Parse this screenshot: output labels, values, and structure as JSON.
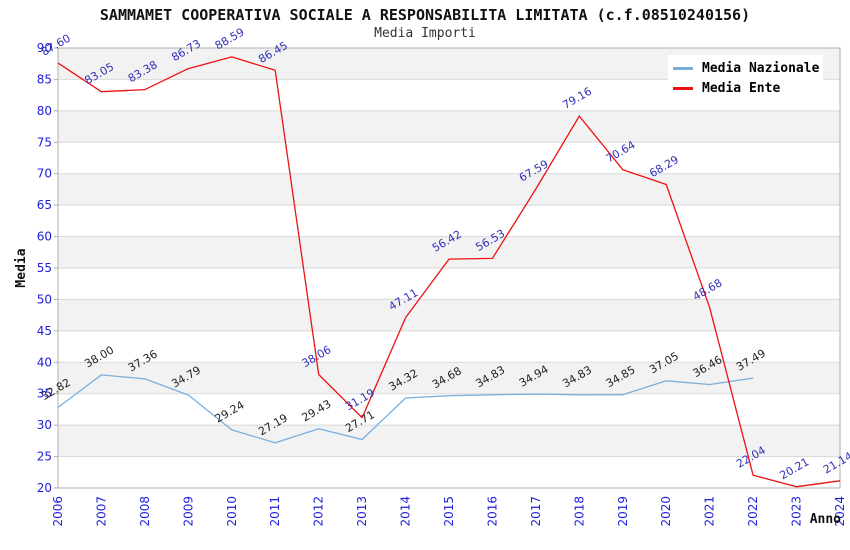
{
  "header": {
    "title": "SAMMAMET COOPERATIVA SOCIALE A RESPONSABILITA LIMITATA (c.f.08510240156)",
    "subtitle": "Media Importi"
  },
  "legend": {
    "items": [
      {
        "label": "Media Nazionale",
        "color": "#79afdd"
      },
      {
        "label": "Media Ente",
        "color": "#ee1111"
      }
    ]
  },
  "chart_data": {
    "type": "line",
    "title": "SAMMAMET COOPERATIVA SOCIALE A RESPONSABILITA LIMITATA (c.f.08510240156)",
    "subtitle": "Media Importi",
    "xlabel": "Anno",
    "ylabel": "Media",
    "x": [
      2006,
      2007,
      2008,
      2009,
      2010,
      2011,
      2012,
      2013,
      2014,
      2015,
      2016,
      2017,
      2018,
      2019,
      2020,
      2021,
      2022,
      2023,
      2024
    ],
    "series": [
      {
        "name": "Media Nazionale",
        "color": "#79afdd",
        "label_color": "#222222",
        "values": [
          32.82,
          38.0,
          37.36,
          34.79,
          29.24,
          27.19,
          29.43,
          27.71,
          34.32,
          34.68,
          34.83,
          34.94,
          34.83,
          34.85,
          37.05,
          36.46,
          37.49,
          null,
          null
        ]
      },
      {
        "name": "Media Ente",
        "color": "#ee1111",
        "label_color": "#3030b8",
        "values": [
          87.6,
          83.05,
          83.38,
          86.73,
          88.59,
          86.45,
          38.06,
          31.19,
          47.11,
          56.42,
          56.53,
          67.59,
          79.16,
          70.64,
          68.29,
          48.68,
          22.04,
          20.21,
          21.14
        ]
      }
    ],
    "ylim": [
      20,
      90
    ],
    "ytick_step": 5,
    "grid": "horizontal",
    "legend_position": "top-right",
    "style": {
      "tick_label_color": "#2020dd",
      "band_color": "#f2f2f2",
      "grid_color": "#d9d9d9",
      "border_color": "#b0b0b0",
      "background": "#ffffff"
    }
  }
}
